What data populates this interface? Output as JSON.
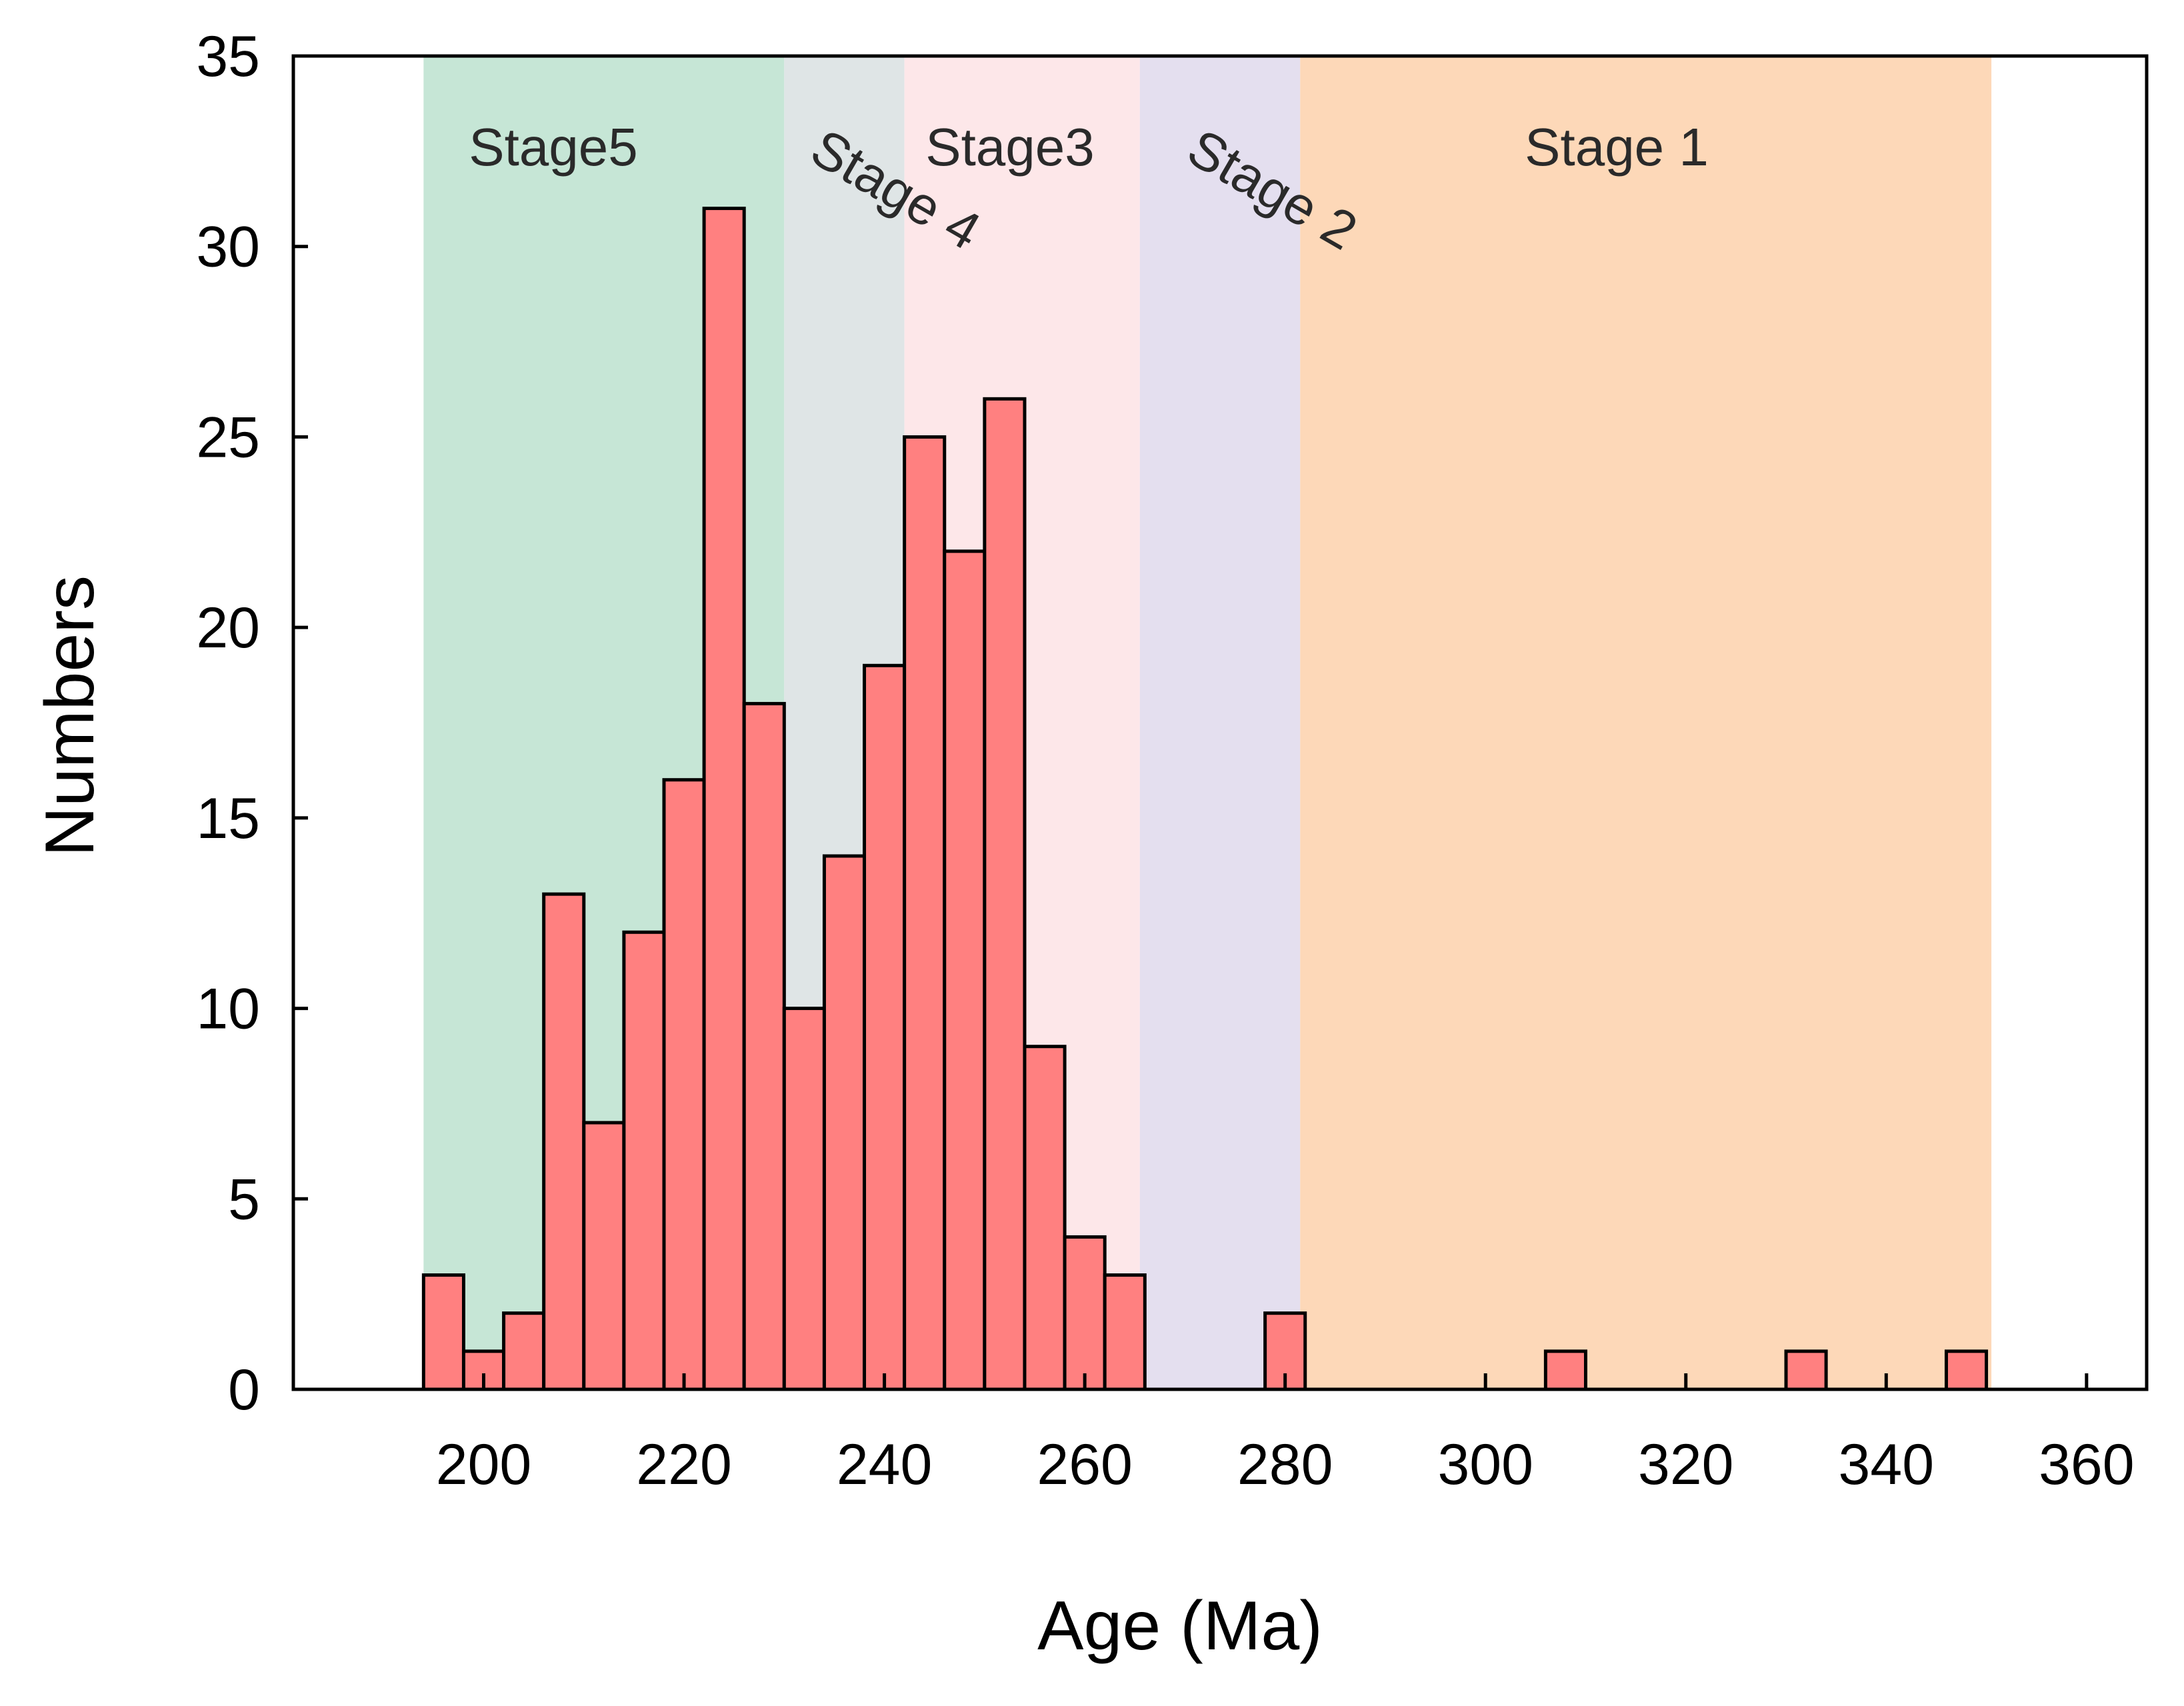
{
  "chart_data": {
    "type": "bar",
    "title": "",
    "xlabel": "Age (Ma)",
    "ylabel": "Numbers",
    "xlim": [
      181,
      366
    ],
    "ylim": [
      0,
      35
    ],
    "grid": false,
    "x_ticks": [
      200,
      220,
      240,
      260,
      280,
      300,
      320,
      340,
      360
    ],
    "y_ticks": [
      0,
      5,
      10,
      15,
      20,
      25,
      30,
      35
    ],
    "bin_width": 4,
    "bar_color": "#ff8080",
    "bins": [
      {
        "start": 194,
        "end": 198,
        "value": 3
      },
      {
        "start": 198,
        "end": 202,
        "value": 1
      },
      {
        "start": 202,
        "end": 206,
        "value": 2
      },
      {
        "start": 206,
        "end": 210,
        "value": 13
      },
      {
        "start": 210,
        "end": 214,
        "value": 7
      },
      {
        "start": 214,
        "end": 218,
        "value": 12
      },
      {
        "start": 218,
        "end": 222,
        "value": 16
      },
      {
        "start": 222,
        "end": 226,
        "value": 31
      },
      {
        "start": 226,
        "end": 230,
        "value": 18
      },
      {
        "start": 230,
        "end": 234,
        "value": 10
      },
      {
        "start": 234,
        "end": 238,
        "value": 14
      },
      {
        "start": 238,
        "end": 242,
        "value": 19
      },
      {
        "start": 242,
        "end": 246,
        "value": 25
      },
      {
        "start": 246,
        "end": 250,
        "value": 22
      },
      {
        "start": 250,
        "end": 254,
        "value": 26
      },
      {
        "start": 254,
        "end": 258,
        "value": 9
      },
      {
        "start": 258,
        "end": 262,
        "value": 4
      },
      {
        "start": 262,
        "end": 266,
        "value": 3
      },
      {
        "start": 278,
        "end": 282,
        "value": 2
      },
      {
        "start": 306,
        "end": 310,
        "value": 1
      },
      {
        "start": 330,
        "end": 334,
        "value": 1
      },
      {
        "start": 346,
        "end": 350,
        "value": 1
      }
    ],
    "stages": [
      {
        "name": "Stage5",
        "from": 194,
        "to": 230,
        "color": "#c6e6d6",
        "rotated": false
      },
      {
        "name": "Stage 4",
        "from": 230,
        "to": 242,
        "color": "#dfe5e6",
        "rotated": true
      },
      {
        "name": "Stage3",
        "from": 242,
        "to": 265.5,
        "color": "#fde7e9",
        "rotated": false
      },
      {
        "name": "Stage 2",
        "from": 265.5,
        "to": 281.5,
        "color": "#e4dfef",
        "rotated": true
      },
      {
        "name": "Stage 1",
        "from": 281.5,
        "to": 350.5,
        "color": "#fdd8b8",
        "rotated": false
      }
    ]
  }
}
